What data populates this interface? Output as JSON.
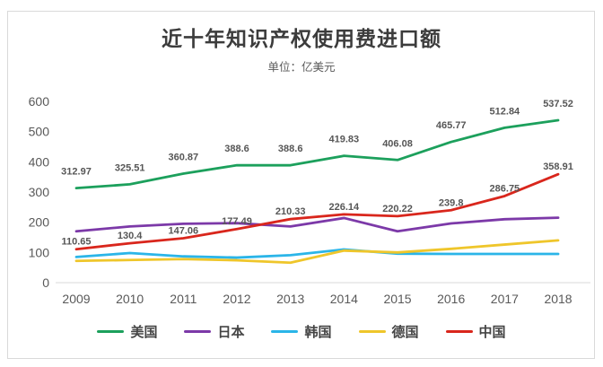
{
  "chart_data": {
    "type": "line",
    "title": "近十年知识产权使用费进口额",
    "subtitle": "单位：亿美元",
    "unit": "亿美元",
    "x": [
      "2009",
      "2010",
      "2011",
      "2012",
      "2013",
      "2014",
      "2015",
      "2016",
      "2017",
      "2018"
    ],
    "ylim": [
      0,
      600
    ],
    "yticks": [
      0,
      100,
      200,
      300,
      400,
      500,
      600
    ],
    "grid": false,
    "legend_position": "bottom",
    "axis_color": "#d9d9d9",
    "tick_text_color": "#595959",
    "label_text_color": "#565656",
    "series": [
      {
        "key": "usa",
        "name": "美国",
        "color": "#1ca05c",
        "labeled": true,
        "label_dy": -15,
        "values": [
          312.97,
          325.51,
          360.87,
          388.6,
          388.6,
          419.83,
          406.08,
          465.77,
          512.84,
          537.52
        ]
      },
      {
        "key": "japan",
        "name": "日本",
        "color": "#7c39a8",
        "labeled": false,
        "values": [
          170,
          186,
          195,
          197,
          186,
          214,
          170,
          196,
          210,
          215
        ]
      },
      {
        "key": "korea",
        "name": "韩国",
        "color": "#2bb5e8",
        "labeled": false,
        "values": [
          85,
          98,
          87,
          83,
          91,
          110,
          96,
          95,
          95,
          95
        ]
      },
      {
        "key": "germany",
        "name": "德国",
        "color": "#efc62b",
        "labeled": false,
        "values": [
          72,
          75,
          78,
          74,
          66,
          106,
          100,
          112,
          126,
          140
        ]
      },
      {
        "key": "china",
        "name": "中国",
        "color": "#d9261c",
        "labeled": true,
        "label_dy": -5,
        "values": [
          110.65,
          130.4,
          147.06,
          177.49,
          210.33,
          226.14,
          220.22,
          239.8,
          286.75,
          358.91
        ]
      }
    ]
  }
}
